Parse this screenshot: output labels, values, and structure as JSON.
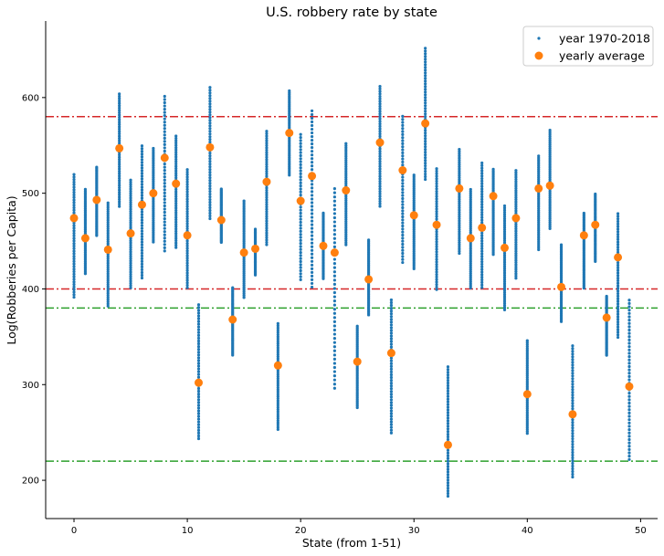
{
  "chart_data": {
    "type": "scatter",
    "title": "U.S. robbery rate by state",
    "xlabel": "State (from 1-51)",
    "ylabel": "Log(Robberies per Capita)",
    "xlim": [
      -2.5,
      51.5
    ],
    "ylim": [
      160,
      680
    ],
    "xticks": [
      0,
      10,
      20,
      30,
      40,
      50
    ],
    "yticks": [
      200,
      300,
      400,
      500,
      600
    ],
    "grid": false,
    "legend_position": "top-right",
    "series": [
      {
        "name": "year 1970-2018",
        "color": "#1f77b4",
        "marker": "dot",
        "ranges_by_state": [
          [
            390,
            521
          ],
          [
            415,
            505
          ],
          [
            455,
            528
          ],
          [
            381,
            491
          ],
          [
            485,
            605
          ],
          [
            400,
            515
          ],
          [
            410,
            551
          ],
          [
            448,
            548
          ],
          [
            438,
            603
          ],
          [
            442,
            561
          ],
          [
            400,
            526
          ],
          [
            242,
            385
          ],
          [
            472,
            612
          ],
          [
            448,
            505
          ],
          [
            330,
            402
          ],
          [
            390,
            493
          ],
          [
            414,
            463
          ],
          [
            445,
            566
          ],
          [
            252,
            365
          ],
          [
            518,
            608
          ],
          [
            408,
            563
          ],
          [
            400,
            588
          ],
          [
            410,
            480
          ],
          [
            294,
            507
          ],
          [
            445,
            553
          ],
          [
            275,
            362
          ],
          [
            372,
            452
          ],
          [
            485,
            613
          ],
          [
            248,
            390
          ],
          [
            426,
            582
          ],
          [
            420,
            520
          ],
          [
            513,
            653
          ],
          [
            398,
            527
          ],
          [
            182,
            320
          ],
          [
            436,
            547
          ],
          [
            400,
            505
          ],
          [
            400,
            533
          ],
          [
            435,
            526
          ],
          [
            377,
            488
          ],
          [
            410,
            525
          ],
          [
            248,
            347
          ],
          [
            440,
            540
          ],
          [
            462,
            567
          ],
          [
            365,
            447
          ],
          [
            202,
            342
          ],
          [
            400,
            480
          ],
          [
            428,
            500
          ],
          [
            330,
            393
          ],
          [
            348,
            480
          ],
          [
            220,
            390
          ]
        ]
      },
      {
        "name": "yearly average",
        "color": "#ff7f0e",
        "marker": "circle",
        "x": [
          0,
          1,
          2,
          3,
          4,
          5,
          6,
          7,
          8,
          9,
          10,
          11,
          12,
          13,
          14,
          15,
          16,
          17,
          18,
          19,
          20,
          21,
          22,
          23,
          24,
          25,
          26,
          27,
          28,
          29,
          30,
          31,
          32,
          33,
          34,
          35,
          36,
          37,
          38,
          39,
          40,
          41,
          42,
          43,
          44,
          45,
          46,
          47,
          48,
          49
        ],
        "y": [
          474,
          453,
          493,
          441,
          547,
          458,
          488,
          500,
          537,
          510,
          456,
          302,
          548,
          472,
          368,
          438,
          442,
          512,
          320,
          563,
          492,
          518,
          445,
          438,
          503,
          324,
          410,
          553,
          333,
          524,
          477,
          573,
          467,
          237,
          505,
          453,
          464,
          497,
          443,
          474,
          290,
          505,
          508,
          402,
          269,
          456,
          467,
          370,
          433,
          298
        ]
      }
    ],
    "reference_lines": [
      {
        "y": 580,
        "color": "#d62728",
        "style": "dashdot"
      },
      {
        "y": 400,
        "color": "#d62728",
        "style": "dashdot"
      },
      {
        "y": 380,
        "color": "#2ca02c",
        "style": "dashdot"
      },
      {
        "y": 220,
        "color": "#2ca02c",
        "style": "dashdot"
      }
    ]
  }
}
